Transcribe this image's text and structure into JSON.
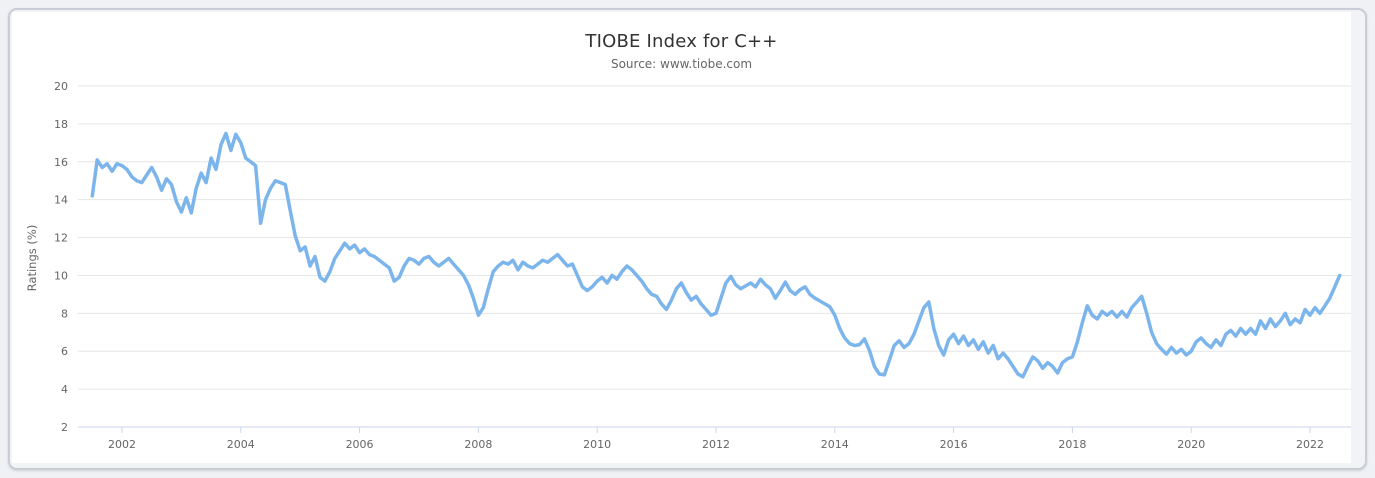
{
  "window": {
    "page_background": "#eff1f4",
    "frame_background": "#f2f3f6",
    "frame_border_color": "#c9cdd6",
    "card_background": "#ffffff"
  },
  "chart_data": {
    "type": "line",
    "title": "TIOBE Index for C++",
    "subtitle": "Source: www.tiobe.com",
    "xlabel": "",
    "ylabel": "Ratings (%)",
    "legend_position": "none",
    "grid": true,
    "xlim": [
      2001.26,
      2022.69
    ],
    "ylim": [
      2,
      20
    ],
    "x_ticks": [
      2002,
      2004,
      2006,
      2008,
      2010,
      2012,
      2014,
      2016,
      2018,
      2020,
      2022
    ],
    "y_ticks": [
      2,
      4,
      6,
      8,
      10,
      12,
      14,
      16,
      18,
      20
    ],
    "style": {
      "grid_color": "#e6e6e6",
      "axis_color": "#ccd6eb",
      "title_color": "#333333",
      "subtitle_color": "#666666",
      "label_color": "#666666",
      "tick_length": 6
    },
    "series": [
      {
        "name": "C++",
        "color": "#7cb5ec",
        "line_width": 3.5,
        "x_start_year": 2001.5,
        "x_step_months": 1,
        "values": [
          14.2,
          16.1,
          15.7,
          15.9,
          15.5,
          15.9,
          15.8,
          15.6,
          15.2,
          15.0,
          14.9,
          15.3,
          15.7,
          15.2,
          14.5,
          15.1,
          14.8,
          13.9,
          13.35,
          14.1,
          13.3,
          14.6,
          15.4,
          14.9,
          16.2,
          15.6,
          16.9,
          17.5,
          16.6,
          17.45,
          17.0,
          16.2,
          16.0,
          15.8,
          12.75,
          14.0,
          14.6,
          15.0,
          14.9,
          14.8,
          13.4,
          12.1,
          11.3,
          11.5,
          10.5,
          11.0,
          9.9,
          9.7,
          10.2,
          10.9,
          11.3,
          11.7,
          11.4,
          11.6,
          11.2,
          11.4,
          11.1,
          11.0,
          10.8,
          10.6,
          10.4,
          9.7,
          9.9,
          10.5,
          10.9,
          10.8,
          10.6,
          10.9,
          11.0,
          10.7,
          10.5,
          10.7,
          10.9,
          10.6,
          10.3,
          10.0,
          9.5,
          8.8,
          7.9,
          8.3,
          9.3,
          10.2,
          10.5,
          10.7,
          10.6,
          10.8,
          10.3,
          10.7,
          10.5,
          10.4,
          10.6,
          10.8,
          10.7,
          10.9,
          11.1,
          10.8,
          10.5,
          10.6,
          10.0,
          9.4,
          9.2,
          9.4,
          9.7,
          9.9,
          9.6,
          10.0,
          9.8,
          10.2,
          10.5,
          10.3,
          10.0,
          9.7,
          9.3,
          9.0,
          8.9,
          8.5,
          8.2,
          8.7,
          9.3,
          9.6,
          9.1,
          8.7,
          8.9,
          8.5,
          8.2,
          7.9,
          8.0,
          8.8,
          9.6,
          9.95,
          9.5,
          9.3,
          9.45,
          9.6,
          9.4,
          9.8,
          9.5,
          9.3,
          8.8,
          9.2,
          9.65,
          9.2,
          9.0,
          9.25,
          9.4,
          9.0,
          8.8,
          8.65,
          8.5,
          8.35,
          7.9,
          7.2,
          6.7,
          6.4,
          6.3,
          6.35,
          6.65,
          6.05,
          5.2,
          4.8,
          4.75,
          5.5,
          6.3,
          6.55,
          6.2,
          6.4,
          6.9,
          7.6,
          8.3,
          8.6,
          7.2,
          6.3,
          5.8,
          6.6,
          6.9,
          6.4,
          6.8,
          6.3,
          6.6,
          6.1,
          6.5,
          5.9,
          6.3,
          5.6,
          5.9,
          5.6,
          5.2,
          4.8,
          4.65,
          5.2,
          5.7,
          5.5,
          5.1,
          5.4,
          5.2,
          4.85,
          5.4,
          5.6,
          5.7,
          6.5,
          7.5,
          8.4,
          7.9,
          7.7,
          8.1,
          7.9,
          8.1,
          7.8,
          8.1,
          7.8,
          8.3,
          8.6,
          8.9,
          8.0,
          7.0,
          6.4,
          6.1,
          5.85,
          6.2,
          5.9,
          6.1,
          5.8,
          6.0,
          6.5,
          6.7,
          6.4,
          6.2,
          6.6,
          6.3,
          6.9,
          7.1,
          6.8,
          7.2,
          6.9,
          7.2,
          6.9,
          7.6,
          7.2,
          7.7,
          7.3,
          7.6,
          8.0,
          7.4,
          7.7,
          7.5,
          8.2,
          7.9,
          8.3,
          8.0,
          8.4,
          8.8,
          9.4,
          10.0
        ]
      }
    ]
  }
}
